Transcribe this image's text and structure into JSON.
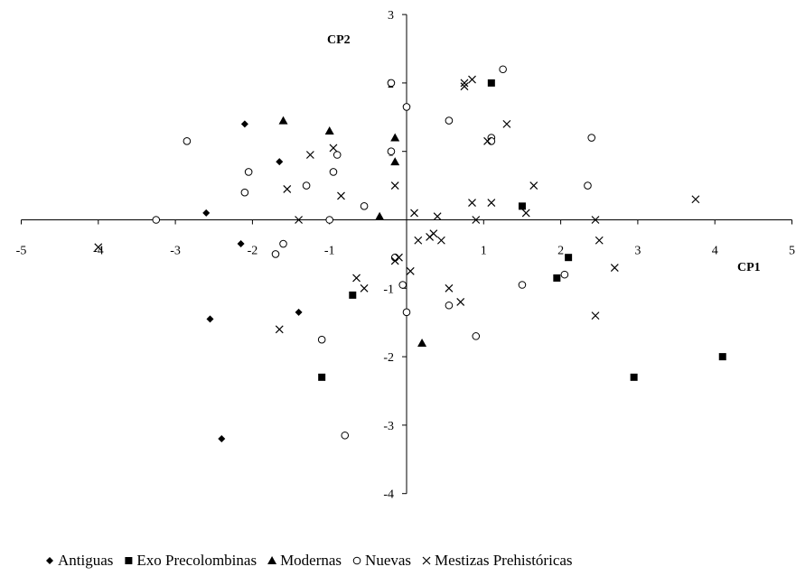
{
  "chart_data": {
    "type": "scatter",
    "xlabel": "CP1",
    "ylabel": "CP2",
    "xlim": [
      -5,
      5
    ],
    "ylim": [
      -4,
      3
    ],
    "x_ticks": [
      -5,
      -4,
      -3,
      -2,
      -1,
      0,
      1,
      2,
      3,
      4,
      5
    ],
    "y_ticks": [
      -4,
      -3,
      -2,
      -1,
      1,
      2,
      3
    ],
    "x_tick_labels": [
      "-5",
      "-4",
      "-3",
      "-2",
      "-1",
      "",
      "1",
      "2",
      "3",
      "4",
      "5"
    ],
    "y_tick_labels": [
      "-4",
      "-3",
      "-2",
      "-1",
      "1",
      "2",
      "3"
    ],
    "grid": false,
    "legend_position": "bottom",
    "series": [
      {
        "name": "Antiguas",
        "marker": "diamond",
        "color": "#000000",
        "points": [
          [
            -2.1,
            1.4
          ],
          [
            -1.65,
            0.85
          ],
          [
            -2.6,
            0.1
          ],
          [
            -2.15,
            -0.35
          ],
          [
            -2.55,
            -1.45
          ],
          [
            -1.4,
            -1.35
          ],
          [
            -2.4,
            -3.2
          ]
        ]
      },
      {
        "name": "Exo Precolombinas",
        "marker": "square",
        "color": "#000000",
        "points": [
          [
            1.1,
            2.0
          ],
          [
            1.5,
            0.2
          ],
          [
            2.1,
            -0.55
          ],
          [
            1.95,
            -0.85
          ],
          [
            -0.7,
            -1.1
          ],
          [
            -1.1,
            -2.3
          ],
          [
            2.95,
            -2.3
          ],
          [
            4.1,
            -2.0
          ]
        ]
      },
      {
        "name": "Modernas",
        "marker": "triangle",
        "color": "#000000",
        "points": [
          [
            -1.6,
            1.45
          ],
          [
            -1.0,
            1.3
          ],
          [
            -0.15,
            1.2
          ],
          [
            -0.15,
            0.85
          ],
          [
            -0.35,
            0.05
          ],
          [
            0.2,
            -1.8
          ]
        ]
      },
      {
        "name": "Nuevas",
        "marker": "circle",
        "color": "#000000",
        "points": [
          [
            -2.85,
            1.15
          ],
          [
            -2.05,
            0.7
          ],
          [
            -2.1,
            0.4
          ],
          [
            -1.7,
            -0.5
          ],
          [
            -1.6,
            -0.35
          ],
          [
            -1.3,
            0.5
          ],
          [
            -0.95,
            0.7
          ],
          [
            -0.9,
            0.95
          ],
          [
            -1.0,
            0.0
          ],
          [
            -0.55,
            0.2
          ],
          [
            -0.2,
            2.0
          ],
          [
            0.0,
            1.65
          ],
          [
            -0.2,
            1.0
          ],
          [
            -0.15,
            -0.55
          ],
          [
            -0.05,
            -0.95
          ],
          [
            0.0,
            -1.35
          ],
          [
            0.55,
            1.45
          ],
          [
            0.55,
            -1.25
          ],
          [
            0.9,
            -1.7
          ],
          [
            1.1,
            1.2
          ],
          [
            1.1,
            1.15
          ],
          [
            1.25,
            2.2
          ],
          [
            1.5,
            -0.95
          ],
          [
            2.05,
            -0.8
          ],
          [
            2.35,
            0.5
          ],
          [
            2.4,
            1.2
          ],
          [
            -3.25,
            0.0
          ],
          [
            -1.1,
            -1.75
          ],
          [
            -0.8,
            -3.15
          ]
        ]
      },
      {
        "name": "Mestizas Prehistóricas",
        "marker": "x",
        "color": "#000000",
        "points": [
          [
            -4.0,
            -0.4
          ],
          [
            -1.55,
            0.45
          ],
          [
            -1.4,
            0.0
          ],
          [
            -1.25,
            0.95
          ],
          [
            -0.95,
            1.05
          ],
          [
            -0.85,
            0.35
          ],
          [
            -0.65,
            -0.85
          ],
          [
            -0.55,
            -1.0
          ],
          [
            -1.65,
            -1.6
          ],
          [
            -0.15,
            -0.6
          ],
          [
            -0.15,
            0.5
          ],
          [
            -0.1,
            -0.55
          ],
          [
            0.05,
            -0.75
          ],
          [
            0.1,
            0.1
          ],
          [
            0.15,
            -0.3
          ],
          [
            0.3,
            -0.25
          ],
          [
            0.35,
            -0.2
          ],
          [
            0.4,
            0.05
          ],
          [
            0.45,
            -0.3
          ],
          [
            0.55,
            -1.0
          ],
          [
            0.7,
            -1.2
          ],
          [
            0.75,
            1.95
          ],
          [
            0.75,
            2.0
          ],
          [
            0.85,
            2.05
          ],
          [
            0.85,
            0.25
          ],
          [
            0.9,
            0.0
          ],
          [
            1.05,
            1.15
          ],
          [
            1.1,
            0.25
          ],
          [
            1.3,
            1.4
          ],
          [
            1.55,
            0.1
          ],
          [
            1.65,
            0.5
          ],
          [
            2.45,
            0.0
          ],
          [
            2.5,
            -0.3
          ],
          [
            2.45,
            -1.4
          ],
          [
            2.7,
            -0.7
          ],
          [
            3.75,
            0.3
          ]
        ]
      }
    ]
  }
}
